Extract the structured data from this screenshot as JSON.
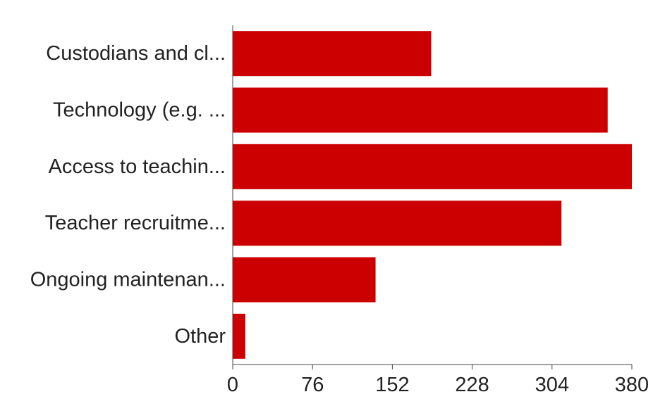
{
  "chart_data": {
    "type": "bar",
    "orientation": "horizontal",
    "categories": [
      "Custodians and cl...",
      "Technology (e.g. ...",
      "Access to teachin...",
      "Teacher recruitme...",
      "Ongoing maintenan...",
      "Other"
    ],
    "values": [
      189,
      357,
      380,
      313,
      136,
      12
    ],
    "xlim": [
      0,
      380
    ],
    "x_ticks": [
      0,
      76,
      152,
      228,
      304,
      380
    ],
    "title": "",
    "xlabel": "",
    "ylabel": "",
    "grid": false,
    "legend": "none",
    "colors": {
      "bar": "#cc0000",
      "axis": "#444444"
    }
  }
}
